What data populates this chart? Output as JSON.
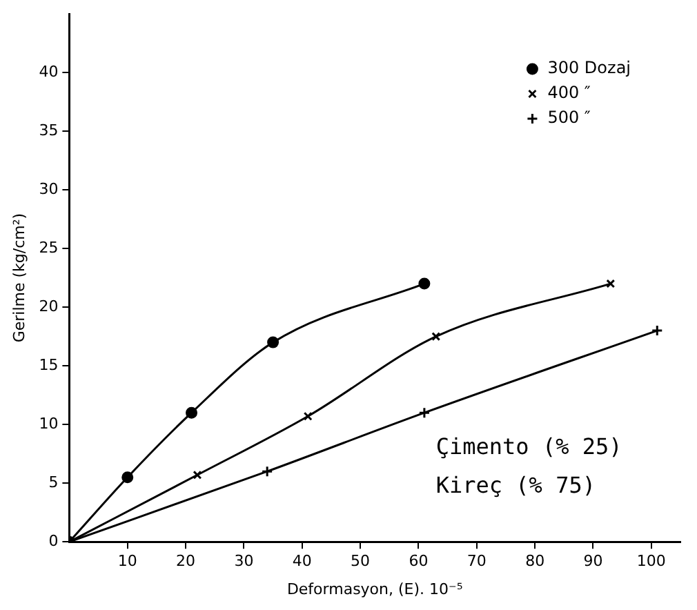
{
  "chart_data": {
    "type": "line",
    "xlabel": "Deformasyon, (E). 10⁻⁵",
    "ylabel": "Gerilme (kg/cm²)",
    "xlim": [
      0,
      105
    ],
    "ylim": [
      0,
      45
    ],
    "xticks": [
      10,
      20,
      30,
      40,
      50,
      60,
      70,
      80,
      90,
      100
    ],
    "yticks": [
      0,
      5,
      10,
      15,
      20,
      25,
      30,
      35,
      40
    ],
    "grid": false,
    "legend": "top right",
    "line_style": "solid",
    "series": [
      {
        "name": "300 Dozaj",
        "color": "#000000",
        "marker": "circle",
        "x": [
          0,
          10,
          21,
          35,
          61
        ],
        "values": [
          0,
          5.5,
          11,
          17,
          22
        ]
      },
      {
        "name": "400 ″",
        "color": "#000000",
        "marker": "cross",
        "x": [
          0,
          22,
          41,
          63,
          93
        ],
        "values": [
          0,
          5.7,
          10.7,
          17.5,
          22
        ]
      },
      {
        "name": "500 ″",
        "color": "#000000",
        "marker": "plus",
        "x": [
          0,
          34,
          61,
          101
        ],
        "values": [
          0,
          6,
          11,
          18
        ]
      }
    ],
    "annotations": [
      "Çimento (% 25)",
      "Kireç (% 75)"
    ]
  }
}
